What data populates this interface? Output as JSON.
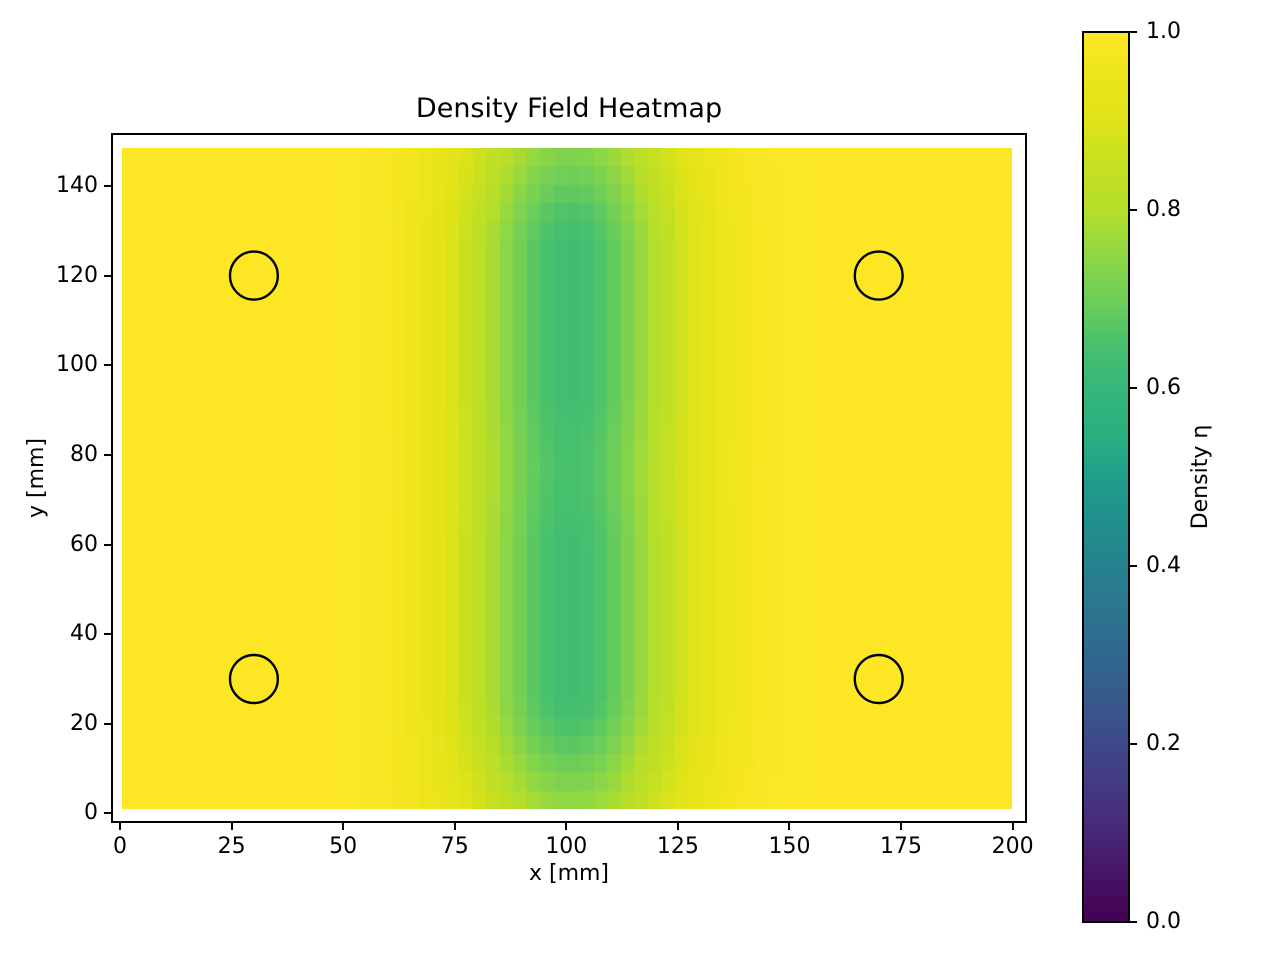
{
  "figure": {
    "background_color": "#ffffff",
    "text_color": "#000000",
    "frame_color": "#000000"
  },
  "chart_data": {
    "type": "heatmap",
    "title": "Density Field Heatmap",
    "xlabel": "x [mm]",
    "ylabel": "y [mm]",
    "colorbar_label": "Density η",
    "xlim": [
      -1.8,
      203.0
    ],
    "ylim": [
      -1.9,
      151.6
    ],
    "xticks": [
      0,
      25,
      50,
      75,
      100,
      125,
      150,
      175,
      200
    ],
    "yticks": [
      0,
      20,
      40,
      60,
      80,
      100,
      120,
      140
    ],
    "colorbar_ticks": [
      "0.0",
      "0.2",
      "0.4",
      "0.6",
      "0.8",
      "1.0"
    ],
    "colorbar_range": [
      0.0,
      1.0
    ],
    "grid_on": false,
    "colormap": "viridis",
    "colormap_stops": [
      [
        0.0,
        "#440154"
      ],
      [
        0.05,
        "#471365"
      ],
      [
        0.1,
        "#482878"
      ],
      [
        0.15,
        "#443983"
      ],
      [
        0.2,
        "#3e4989"
      ],
      [
        0.25,
        "#375a8c"
      ],
      [
        0.3,
        "#31688e"
      ],
      [
        0.35,
        "#2c758e"
      ],
      [
        0.4,
        "#26828e"
      ],
      [
        0.45,
        "#21908d"
      ],
      [
        0.5,
        "#1f9e89"
      ],
      [
        0.55,
        "#2ab07f"
      ],
      [
        0.6,
        "#35b779"
      ],
      [
        0.65,
        "#49c16d"
      ],
      [
        0.7,
        "#6ece58"
      ],
      [
        0.75,
        "#8fd744"
      ],
      [
        0.8,
        "#b5de2b"
      ],
      [
        0.85,
        "#c5e021"
      ],
      [
        0.9,
        "#dfe318"
      ],
      [
        0.95,
        "#ece51b"
      ],
      [
        1.0,
        "#fde725"
      ]
    ],
    "heatmap_extent": {
      "x0": 0.5,
      "x1": 199.8,
      "y0": 1.0,
      "y1": 148.5
    },
    "grid": {
      "nx": 66,
      "ny": 36
    },
    "field": {
      "description": "density eta = 1 - depth * gauss_x(x) * clamped sum of gauss_y lobes; background density 1.0 (yellow), minimum ~0.63 (green) in vertical band",
      "background_density": 1.0,
      "min_density": 0.63,
      "depth": 0.37,
      "x_center": 101,
      "x_sigma": 17,
      "y_centers": [
        34,
        119
      ],
      "y_sigma": 35
    },
    "circles": [
      {
        "x": 30,
        "y": 120,
        "r": 5.35
      },
      {
        "x": 170,
        "y": 120,
        "r": 5.35
      },
      {
        "x": 30,
        "y": 30,
        "r": 5.35
      },
      {
        "x": 170,
        "y": 30,
        "r": 5.35
      }
    ],
    "circle_style": {
      "stroke": "#000000",
      "stroke_width": 2.4,
      "fill": "none"
    }
  }
}
